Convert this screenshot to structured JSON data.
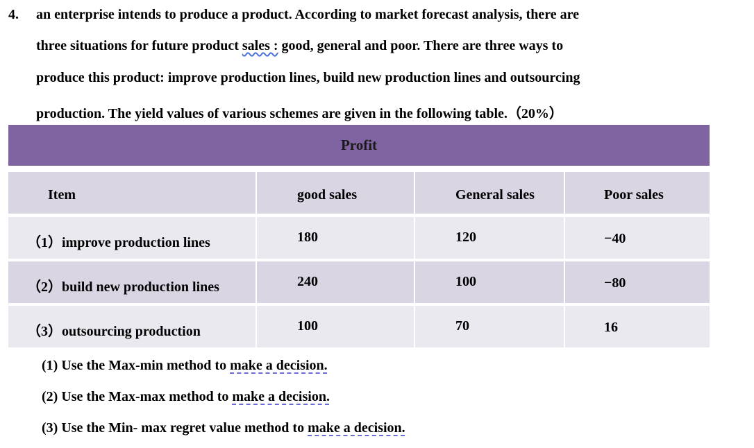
{
  "problem": {
    "number": "4.",
    "line1": "an enterprise intends to produce a product. According to market forecast analysis, there are",
    "line2_pre": "three situations for future product ",
    "line2_ul": "sales :",
    "line2_post": " good, general and poor. There are three ways to",
    "line3": "produce this product: improve production lines, build new production lines and outsourcing",
    "line4": "production. The yield values of various schemes are given in the following table.（20%）"
  },
  "table": {
    "profit_label": "Profit",
    "headers": [
      "Item",
      "good sales",
      "General sales",
      "Poor sales"
    ],
    "rows": [
      [
        "（1）improve production lines",
        "180",
        "120",
        "−40"
      ],
      [
        "（2）build new production lines",
        "240",
        "100",
        "−80"
      ],
      [
        "（3）outsourcing production",
        "100",
        "70",
        "16"
      ]
    ]
  },
  "questions": [
    {
      "pre": "(1) Use the Max-min method to ",
      "ul": "make a decision."
    },
    {
      "pre": "(2) Use the Max-max method to ",
      "ul": "make a decision."
    },
    {
      "pre": "(3) Use the Min- max regret value method to ",
      "ul": "make a decision."
    }
  ]
}
